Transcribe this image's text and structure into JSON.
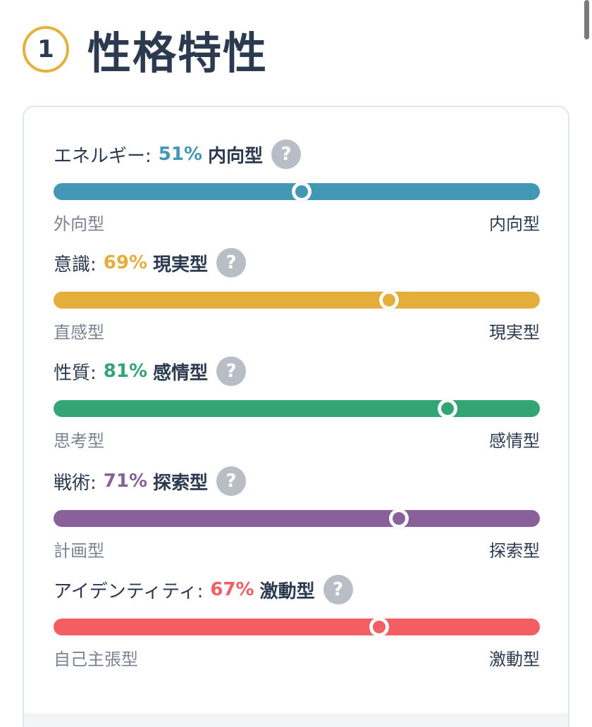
{
  "header": {
    "step": "1",
    "title": "性格特性"
  },
  "traits": [
    {
      "name": "エネルギー:",
      "percent": "51%",
      "value": 51,
      "type": "内向型",
      "left": "外向型",
      "right": "内向型",
      "color": "#4298b4"
    },
    {
      "name": "意識:",
      "percent": "69%",
      "value": 69,
      "type": "現実型",
      "left": "直感型",
      "right": "現実型",
      "color": "#e4ae3a"
    },
    {
      "name": "性質:",
      "percent": "81%",
      "value": 81,
      "type": "感情型",
      "left": "思考型",
      "right": "感情型",
      "color": "#33a474"
    },
    {
      "name": "戦術:",
      "percent": "71%",
      "value": 71,
      "type": "探索型",
      "left": "計画型",
      "right": "探索型",
      "color": "#88619a"
    },
    {
      "name": "アイデンティティ:",
      "percent": "67%",
      "value": 67,
      "type": "激動型",
      "left": "自己主張型",
      "right": "激動型",
      "color": "#f25e62"
    }
  ]
}
